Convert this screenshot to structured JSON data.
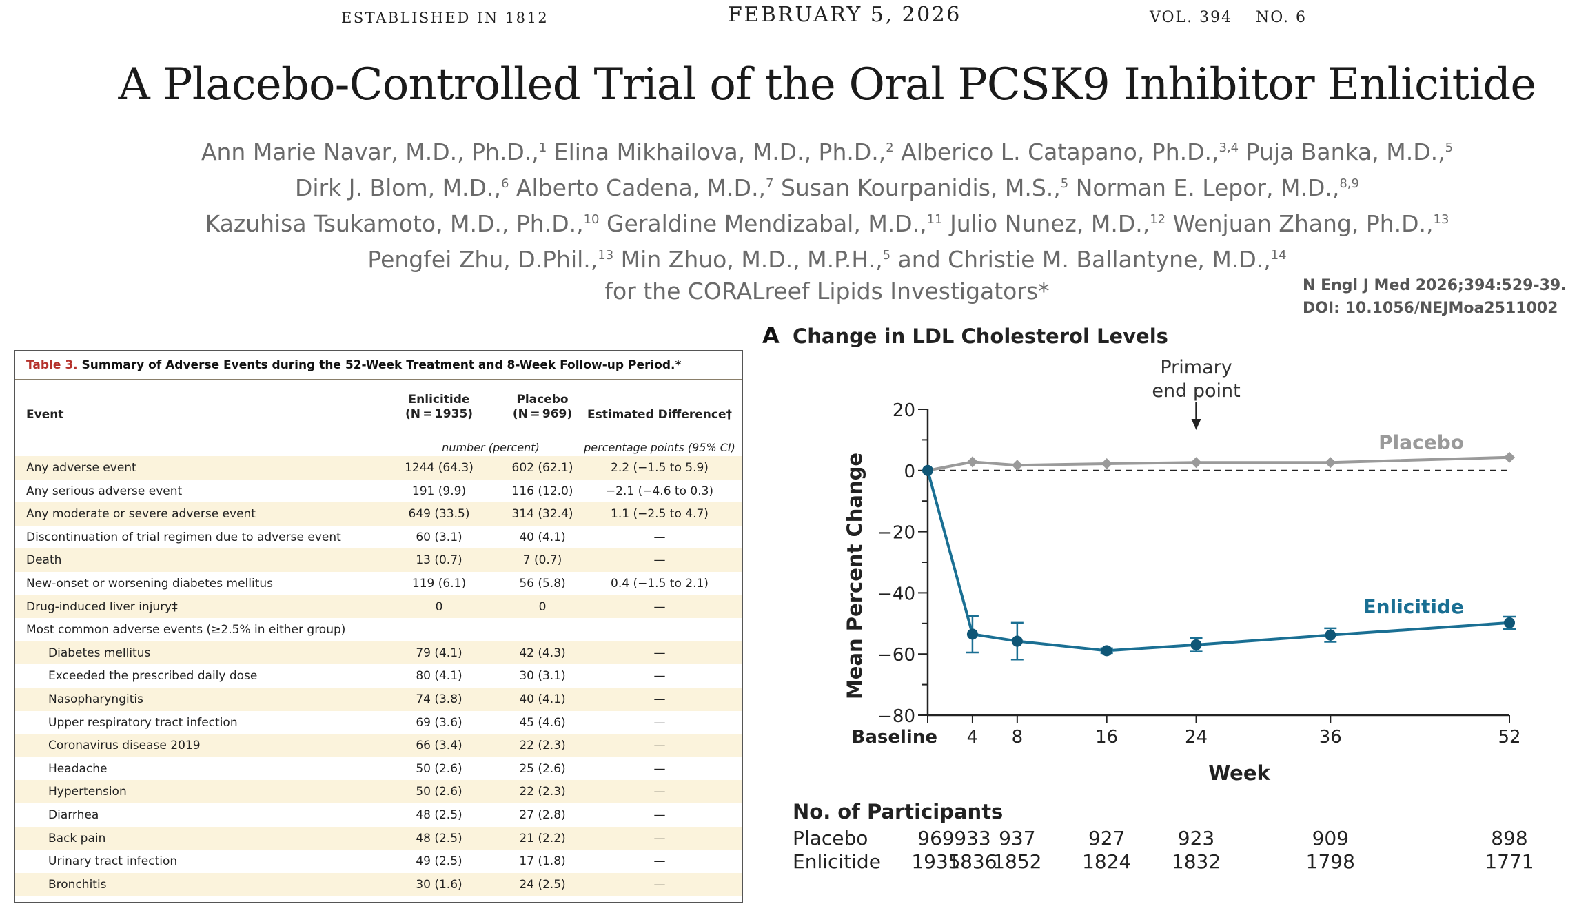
{
  "masthead": {
    "established": "ESTABLISHED IN 1812",
    "date": "FEBRUARY 5, 2026",
    "volume": "VOL. 394",
    "number": "NO. 6"
  },
  "article": {
    "title": "A Placebo-Controlled Trial of the Oral PCSK9 Inhibitor Enlicitide",
    "author_lines": [
      [
        {
          "name": "Ann Marie Navar, M.D., Ph.D.,",
          "sup": "1"
        },
        {
          "name": "Elina Mikhailova, M.D., Ph.D.,",
          "sup": "2"
        },
        {
          "name": "Alberico L. Catapano, Ph.D.,",
          "sup": "3,4"
        },
        {
          "name": "Puja Banka, M.D.,",
          "sup": "5"
        }
      ],
      [
        {
          "name": "Dirk J. Blom, M.D.,",
          "sup": "6"
        },
        {
          "name": "Alberto Cadena, M.D.,",
          "sup": "7"
        },
        {
          "name": "Susan Kourpanidis, M.S.,",
          "sup": "5"
        },
        {
          "name": "Norman E. Lepor, M.D.,",
          "sup": "8,9"
        }
      ],
      [
        {
          "name": "Kazuhisa Tsukamoto, M.D., Ph.D.,",
          "sup": "10"
        },
        {
          "name": "Geraldine Mendizabal, M.D.,",
          "sup": "11"
        },
        {
          "name": "Julio Nunez, M.D.,",
          "sup": "12"
        },
        {
          "name": "Wenjuan Zhang, Ph.D.,",
          "sup": "13"
        }
      ],
      [
        {
          "name": "Pengfei Zhu, D.Phil.,",
          "sup": "13"
        },
        {
          "name": "Min Zhuo, M.D., M.P.H.,",
          "sup": "5"
        },
        {
          "name": "and Christie M. Ballantyne, M.D.,",
          "sup": "14"
        }
      ],
      [
        {
          "name": "for the CORALreef Lipids Investigators*",
          "sup": ""
        }
      ]
    ],
    "citation_line1": "N Engl J Med 2026;394:529-39.",
    "citation_line2": "DOI: 10.1056/NEJMoa2511002"
  },
  "table": {
    "caption_number": "Table 3.",
    "caption_text": " Summary of Adverse Events during the 52-Week Treatment and 8-Week Follow-up Period.*",
    "col_event": "Event",
    "col_enlicitide": "Enlicitide",
    "col_enlicitide_n": "(N = 1935)",
    "col_placebo": "Placebo",
    "col_placebo_n": "(N = 969)",
    "col_diff": "Estimated Difference†",
    "sub_number": "number (percent)",
    "sub_diff": "percentage points (95% CI)",
    "rows": [
      {
        "event": "Any adverse event",
        "enl": "1244 (64.3)",
        "pla": "602 (62.1)",
        "diff": "2.2 (−1.5 to 5.9)",
        "indent": false
      },
      {
        "event": "Any serious adverse event",
        "enl": "191 (9.9)",
        "pla": "116 (12.0)",
        "diff": "−2.1 (−4.6 to 0.3)",
        "indent": false
      },
      {
        "event": "Any moderate or severe adverse event",
        "enl": "649 (33.5)",
        "pla": "314 (32.4)",
        "diff": "1.1 (−2.5 to 4.7)",
        "indent": false
      },
      {
        "event": "Discontinuation of trial regimen due to adverse event",
        "enl": "60 (3.1)",
        "pla": "40 (4.1)",
        "diff": "—",
        "indent": false
      },
      {
        "event": "Death",
        "enl": "13 (0.7)",
        "pla": "7 (0.7)",
        "diff": "—",
        "indent": false
      },
      {
        "event": "New-onset or worsening diabetes mellitus",
        "enl": "119 (6.1)",
        "pla": "56 (5.8)",
        "diff": "0.4 (−1.5 to 2.1)",
        "indent": false
      },
      {
        "event": "Drug-induced liver injury‡",
        "enl": "0",
        "pla": "0",
        "diff": "—",
        "indent": false
      },
      {
        "event": "Most common adverse events (≥2.5% in either group)",
        "enl": "",
        "pla": "",
        "diff": "",
        "indent": false
      },
      {
        "event": "Diabetes mellitus",
        "enl": "79 (4.1)",
        "pla": "42 (4.3)",
        "diff": "—",
        "indent": true
      },
      {
        "event": "Exceeded the prescribed daily dose",
        "enl": "80 (4.1)",
        "pla": "30 (3.1)",
        "diff": "—",
        "indent": true
      },
      {
        "event": "Nasopharyngitis",
        "enl": "74 (3.8)",
        "pla": "40 (4.1)",
        "diff": "—",
        "indent": true
      },
      {
        "event": "Upper respiratory tract infection",
        "enl": "69 (3.6)",
        "pla": "45 (4.6)",
        "diff": "—",
        "indent": true
      },
      {
        "event": "Coronavirus disease 2019",
        "enl": "66 (3.4)",
        "pla": "22 (2.3)",
        "diff": "—",
        "indent": true
      },
      {
        "event": "Headache",
        "enl": "50 (2.6)",
        "pla": "25 (2.6)",
        "diff": "—",
        "indent": true
      },
      {
        "event": "Hypertension",
        "enl": "50 (2.6)",
        "pla": "22 (2.3)",
        "diff": "—",
        "indent": true
      },
      {
        "event": "Diarrhea",
        "enl": "48 (2.5)",
        "pla": "27 (2.8)",
        "diff": "—",
        "indent": true
      },
      {
        "event": "Back pain",
        "enl": "48 (2.5)",
        "pla": "21 (2.2)",
        "diff": "—",
        "indent": true
      },
      {
        "event": "Urinary tract infection",
        "enl": "49 (2.5)",
        "pla": "17 (1.8)",
        "diff": "—",
        "indent": true
      },
      {
        "event": "Bronchitis",
        "enl": "30 (1.6)",
        "pla": "24 (2.5)",
        "diff": "—",
        "indent": true
      }
    ]
  },
  "colors": {
    "enlicitide": "#1a6f93",
    "placebo": "#9a9a9a",
    "caption_accent": "#b5312b",
    "row_shade": "#fbf3dc"
  },
  "chart_data": {
    "type": "line",
    "panel_letter": "A",
    "title": "Change in LDL Cholesterol Levels",
    "xlabel": "Week",
    "ylabel": "Mean Percent Change",
    "x": [
      0,
      4,
      8,
      16,
      24,
      36,
      52
    ],
    "x_tick_labels": [
      "Baseline",
      "4",
      "8",
      "16",
      "24",
      "36",
      "52"
    ],
    "ylim": [
      -80,
      20
    ],
    "y_ticks": [
      20,
      0,
      -20,
      -40,
      -60,
      -80
    ],
    "y_tick_labels": [
      "20",
      "0",
      "−20",
      "−40",
      "−60",
      "−80"
    ],
    "reference_line": 0,
    "annotation": {
      "line1": "Primary",
      "line2": "end point",
      "x": 24
    },
    "series": [
      {
        "name": "Placebo",
        "values": [
          0,
          2.8,
          1.7,
          2.2,
          2.6,
          2.6,
          4.3
        ],
        "error": [
          0,
          0,
          0,
          0,
          0,
          0,
          0
        ]
      },
      {
        "name": "Enlicitide",
        "values": [
          0,
          -53.5,
          -55.8,
          -58.9,
          -57.0,
          -53.8,
          -49.8
        ],
        "error": [
          0,
          6.0,
          6.0,
          0.8,
          2.2,
          2.2,
          2.0
        ]
      }
    ],
    "participants": {
      "heading": "No. of Participants",
      "rows": [
        {
          "label": "Placebo",
          "values": [
            "969",
            "933",
            "937",
            "927",
            "923",
            "909",
            "898"
          ]
        },
        {
          "label": "Enlicitide",
          "values": [
            "1935",
            "1836",
            "1852",
            "1824",
            "1832",
            "1798",
            "1771"
          ]
        }
      ]
    }
  }
}
